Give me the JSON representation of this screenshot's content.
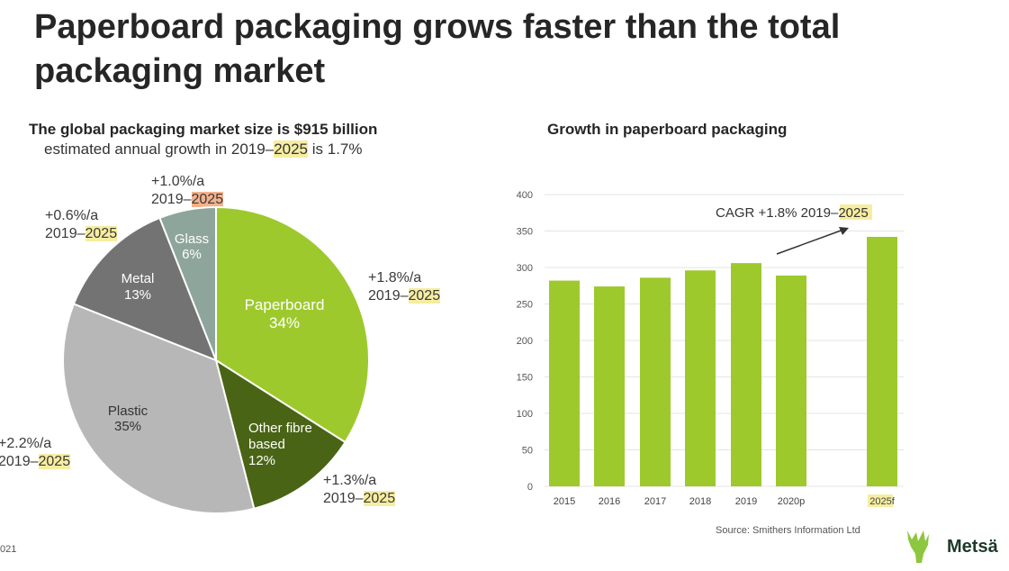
{
  "title": "Paperboard packaging grows faster than the total packaging market",
  "pie": {
    "heading": "The global packaging market size is $915 billion",
    "subtitle_prefix": "estimated annual growth in 2019–",
    "subtitle_year": "2025",
    "subtitle_suffix": " is 1.7%"
  },
  "growth_labels": {
    "glass": {
      "rate": "+1.0%/a",
      "period": "2019–",
      "year": "2025"
    },
    "metal": {
      "rate": "+0.6%/a",
      "period": "2019–",
      "year": "2025"
    },
    "paperboard": {
      "rate": "+1.8%/a",
      "period": "2019–",
      "year": "2025"
    },
    "plastic": {
      "rate": "+2.2%/a",
      "period": "2019–",
      "year": "2025"
    },
    "other_fibre": {
      "rate": "+1.3%/a",
      "period": "2019–",
      "year": "2025"
    }
  },
  "bar": {
    "heading": "Growth in paperboard packaging",
    "annotation_prefix": "CAGR +1.8% 2019–",
    "annotation_year": "2025",
    "last_category_year": "2025",
    "last_category_suffix": "f"
  },
  "source": "Source: Smithers Information Ltd",
  "page_number": "021",
  "logo_text": "Metsä",
  "colors": {
    "paperboard": "#9dc92d",
    "other_fibre": "#4a6415",
    "plastic": "#b7b7b7",
    "metal": "#737373",
    "glass": "#8ea59b",
    "bar": "#9dc92d",
    "highlight": "#f6eda0",
    "highlight_orange": "#f3b18c",
    "logo_green": "#8dc63f"
  },
  "chart_data": [
    {
      "type": "pie",
      "title": "The global packaging market size is $915 billion",
      "slices": [
        {
          "label": "Paperboard",
          "value": 34,
          "value_label": "34%"
        },
        {
          "label": "Other fibre based",
          "value": 12,
          "value_label": "12%"
        },
        {
          "label": "Plastic",
          "value": 35,
          "value_label": "35%"
        },
        {
          "label": "Metal",
          "value": 13,
          "value_label": "13%"
        },
        {
          "label": "Glass",
          "value": 6,
          "value_label": "6%"
        }
      ]
    },
    {
      "type": "bar",
      "title": "Growth in paperboard packaging",
      "categories": [
        "2015",
        "2016",
        "2017",
        "2018",
        "2019",
        "2020p",
        "2025f"
      ],
      "values": [
        282,
        274,
        286,
        296,
        306,
        289,
        342
      ],
      "ylim": [
        0,
        400
      ],
      "yticks": [
        "0",
        "50",
        "100",
        "150",
        "200",
        "250",
        "300",
        "350",
        "400"
      ],
      "grid": true
    }
  ]
}
